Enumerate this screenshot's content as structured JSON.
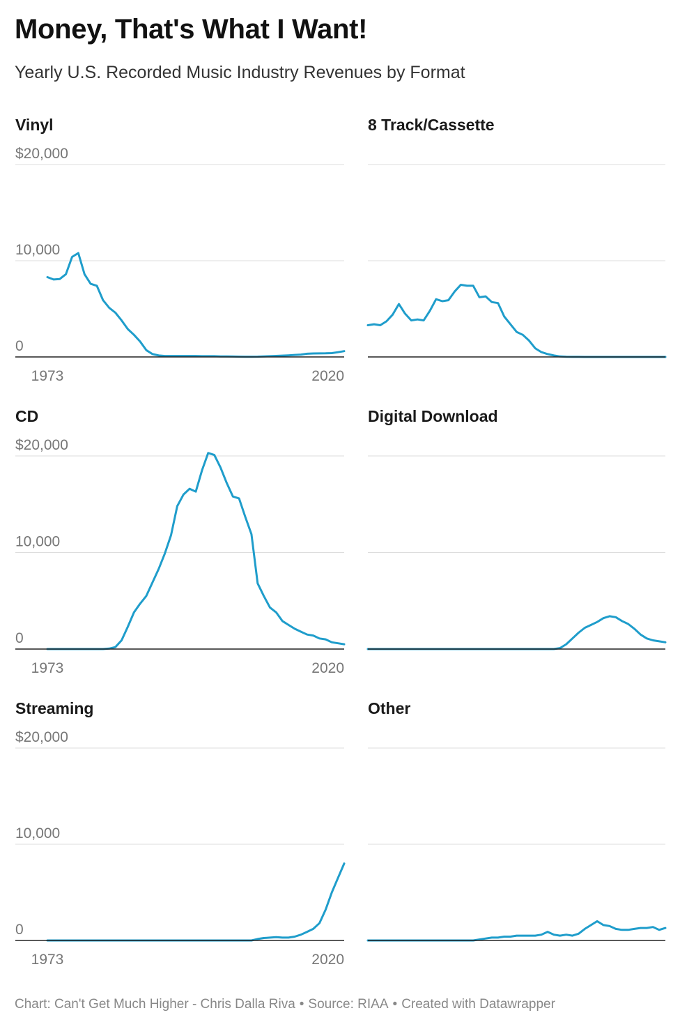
{
  "title": "Money, That's What I Want!",
  "subtitle": "Yearly U.S. Recorded Music Industry Revenues by Format",
  "footer": {
    "chart_credit": "Chart: Can't Get Much Higher - Chris Dalla Riva",
    "source": "Source: RIAA",
    "made_with": "Created with Datawrapper"
  },
  "colors": {
    "line": "#1f9dcb",
    "grid": "#dddddd",
    "axis": "#222222",
    "tick_text": "#777777"
  },
  "chart_data": [
    {
      "type": "line",
      "title": "Vinyl",
      "x_tick_labels": [
        "1973",
        "2020"
      ],
      "y_tick_labels": [
        "$20,000",
        "10,000",
        "0"
      ],
      "ylim": [
        0,
        20000
      ],
      "xlim": [
        1973,
        2021
      ],
      "x": [
        1973,
        1974,
        1975,
        1976,
        1977,
        1978,
        1979,
        1980,
        1981,
        1982,
        1983,
        1984,
        1985,
        1986,
        1987,
        1988,
        1989,
        1990,
        1991,
        1992,
        1993,
        1994,
        1995,
        1996,
        1997,
        1998,
        1999,
        2000,
        2001,
        2002,
        2003,
        2004,
        2005,
        2006,
        2007,
        2008,
        2009,
        2010,
        2011,
        2012,
        2013,
        2014,
        2015,
        2016,
        2017,
        2018,
        2019,
        2020,
        2021
      ],
      "y": [
        8300,
        8050,
        8100,
        8600,
        10400,
        10800,
        8600,
        7600,
        7400,
        5900,
        5100,
        4600,
        3800,
        2900,
        2300,
        1600,
        700,
        300,
        150,
        100,
        100,
        100,
        100,
        100,
        100,
        80,
        80,
        80,
        60,
        50,
        40,
        30,
        20,
        20,
        30,
        60,
        80,
        110,
        140,
        170,
        210,
        250,
        330,
        360,
        370,
        380,
        400,
        490,
        600
      ]
    },
    {
      "type": "line",
      "title": "8 Track/Cassette",
      "x_tick_labels": [],
      "y_tick_labels": [],
      "ylim": [
        0,
        20000
      ],
      "xlim": [
        1973,
        2021
      ],
      "x": [
        1973,
        1974,
        1975,
        1976,
        1977,
        1978,
        1979,
        1980,
        1981,
        1982,
        1983,
        1984,
        1985,
        1986,
        1987,
        1988,
        1989,
        1990,
        1991,
        1992,
        1993,
        1994,
        1995,
        1996,
        1997,
        1998,
        1999,
        2000,
        2001,
        2002,
        2003,
        2004,
        2005,
        2006,
        2007,
        2008,
        2009,
        2010,
        2011,
        2012,
        2013,
        2014,
        2015,
        2016,
        2017,
        2018,
        2019,
        2020,
        2021
      ],
      "y": [
        3300,
        3400,
        3300,
        3700,
        4400,
        5500,
        4500,
        3800,
        3900,
        3800,
        4800,
        6000,
        5800,
        5900,
        6800,
        7500,
        7400,
        7400,
        6200,
        6300,
        5700,
        5600,
        4200,
        3400,
        2600,
        2300,
        1700,
        900,
        500,
        300,
        150,
        50,
        20,
        10,
        5,
        0,
        0,
        0,
        0,
        0,
        0,
        0,
        0,
        0,
        0,
        0,
        0,
        0,
        0
      ]
    },
    {
      "type": "line",
      "title": "CD",
      "x_tick_labels": [
        "1973",
        "2020"
      ],
      "y_tick_labels": [
        "$20,000",
        "10,000",
        "0"
      ],
      "ylim": [
        0,
        20000
      ],
      "xlim": [
        1973,
        2021
      ],
      "x": [
        1973,
        1974,
        1975,
        1976,
        1977,
        1978,
        1979,
        1980,
        1981,
        1982,
        1983,
        1984,
        1985,
        1986,
        1987,
        1988,
        1989,
        1990,
        1991,
        1992,
        1993,
        1994,
        1995,
        1996,
        1997,
        1998,
        1999,
        2000,
        2001,
        2002,
        2003,
        2004,
        2005,
        2006,
        2007,
        2008,
        2009,
        2010,
        2011,
        2012,
        2013,
        2014,
        2015,
        2016,
        2017,
        2018,
        2019,
        2020,
        2021
      ],
      "y": [
        0,
        0,
        0,
        0,
        0,
        0,
        0,
        0,
        0,
        0,
        50,
        200,
        900,
        2300,
        3800,
        4700,
        5500,
        6900,
        8300,
        9900,
        11800,
        14800,
        16000,
        16600,
        16300,
        18500,
        20300,
        20100,
        18800,
        17200,
        15800,
        15600,
        13700,
        11900,
        6800,
        5500,
        4300,
        3800,
        2900,
        2500,
        2100,
        1800,
        1500,
        1400,
        1100,
        1000,
        700,
        600,
        500
      ]
    },
    {
      "type": "line",
      "title": "Digital Download",
      "x_tick_labels": [],
      "y_tick_labels": [],
      "ylim": [
        0,
        20000
      ],
      "xlim": [
        1973,
        2021
      ],
      "x": [
        1973,
        1974,
        1975,
        1976,
        1977,
        1978,
        1979,
        1980,
        1981,
        1982,
        1983,
        1984,
        1985,
        1986,
        1987,
        1988,
        1989,
        1990,
        1991,
        1992,
        1993,
        1994,
        1995,
        1996,
        1997,
        1998,
        1999,
        2000,
        2001,
        2002,
        2003,
        2004,
        2005,
        2006,
        2007,
        2008,
        2009,
        2010,
        2011,
        2012,
        2013,
        2014,
        2015,
        2016,
        2017,
        2018,
        2019,
        2020,
        2021
      ],
      "y": [
        0,
        0,
        0,
        0,
        0,
        0,
        0,
        0,
        0,
        0,
        0,
        0,
        0,
        0,
        0,
        0,
        0,
        0,
        0,
        0,
        0,
        0,
        0,
        0,
        0,
        0,
        0,
        0,
        0,
        0,
        0,
        100,
        500,
        1100,
        1700,
        2200,
        2500,
        2800,
        3200,
        3400,
        3300,
        2900,
        2600,
        2100,
        1500,
        1100,
        900,
        800,
        700
      ]
    },
    {
      "type": "line",
      "title": "Streaming",
      "x_tick_labels": [
        "1973",
        "2020"
      ],
      "y_tick_labels": [
        "$20,000",
        "10,000",
        "0"
      ],
      "ylim": [
        0,
        20000
      ],
      "xlim": [
        1973,
        2021
      ],
      "x": [
        1973,
        1974,
        1975,
        1976,
        1977,
        1978,
        1979,
        1980,
        1981,
        1982,
        1983,
        1984,
        1985,
        1986,
        1987,
        1988,
        1989,
        1990,
        1991,
        1992,
        1993,
        1994,
        1995,
        1996,
        1997,
        1998,
        1999,
        2000,
        2001,
        2002,
        2003,
        2004,
        2005,
        2006,
        2007,
        2008,
        2009,
        2010,
        2011,
        2012,
        2013,
        2014,
        2015,
        2016,
        2017,
        2018,
        2019,
        2020,
        2021
      ],
      "y": [
        0,
        0,
        0,
        0,
        0,
        0,
        0,
        0,
        0,
        0,
        0,
        0,
        0,
        0,
        0,
        0,
        0,
        0,
        0,
        0,
        0,
        0,
        0,
        0,
        0,
        0,
        0,
        0,
        0,
        0,
        0,
        0,
        0,
        0,
        150,
        250,
        300,
        350,
        300,
        300,
        400,
        600,
        900,
        1200,
        1800,
        3200,
        5000,
        6500,
        8000
      ]
    },
    {
      "type": "line",
      "title": "Other",
      "x_tick_labels": [],
      "y_tick_labels": [],
      "ylim": [
        0,
        20000
      ],
      "xlim": [
        1973,
        2021
      ],
      "x": [
        1973,
        1974,
        1975,
        1976,
        1977,
        1978,
        1979,
        1980,
        1981,
        1982,
        1983,
        1984,
        1985,
        1986,
        1987,
        1988,
        1989,
        1990,
        1991,
        1992,
        1993,
        1994,
        1995,
        1996,
        1997,
        1998,
        1999,
        2000,
        2001,
        2002,
        2003,
        2004,
        2005,
        2006,
        2007,
        2008,
        2009,
        2010,
        2011,
        2012,
        2013,
        2014,
        2015,
        2016,
        2017,
        2018,
        2019,
        2020,
        2021
      ],
      "y": [
        0,
        0,
        0,
        0,
        0,
        0,
        0,
        0,
        0,
        0,
        0,
        0,
        0,
        0,
        0,
        0,
        0,
        0,
        100,
        200,
        300,
        300,
        400,
        400,
        500,
        500,
        500,
        500,
        600,
        900,
        600,
        500,
        600,
        500,
        700,
        1200,
        1600,
        2000,
        1600,
        1500,
        1200,
        1100,
        1100,
        1200,
        1300,
        1300,
        1400,
        1100,
        1300
      ]
    }
  ]
}
